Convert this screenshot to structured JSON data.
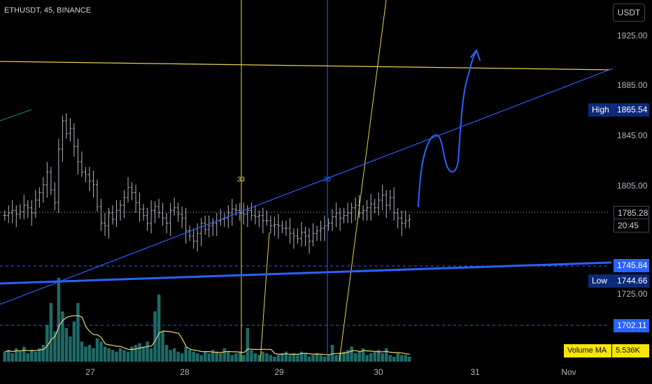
{
  "header": {
    "symbol": "ETHUSDT, 45, BINANCE",
    "currency": "USDT"
  },
  "colors": {
    "background": "#000000",
    "bar": "#b2b5be",
    "volume": "#1e6b68",
    "volume_ma": "#ead27a",
    "trendline_blue": "#2962ff",
    "hand_drawn": "#2962ff",
    "line_yellow": "#e5d24a",
    "high_tag_bg": "#0c2a7a",
    "level_tag_bg": "#2962ff",
    "volume_ma_tag_bg": "#f7e600"
  },
  "price_axis": {
    "ticks": [
      "1925.00",
      "1885.00",
      "1845.00",
      "1805.00",
      "1725.00"
    ]
  },
  "time_axis": {
    "ticks": [
      "27",
      "28",
      "29",
      "30",
      "31",
      "Nov"
    ]
  },
  "tags": {
    "high_label": "High",
    "high_value": "1865.54",
    "last_price": "1785.28",
    "countdown": "20:45",
    "level_upper": "1745.84",
    "low_label": "Low",
    "low_value": "1744.66",
    "level_lower": "1702.11",
    "volume_ma_label": "Volume MA",
    "volume_ma_value": "5.536K"
  },
  "markers": [
    "33",
    "33"
  ],
  "chart_data": {
    "type": "ohlc",
    "symbol": "ETHUSDT",
    "interval": "45",
    "exchange": "BINANCE",
    "y_range": [
      1700,
      1940
    ],
    "x_categories": [
      "27",
      "28",
      "29",
      "30",
      "31",
      "Nov"
    ],
    "horizontal_levels": [
      1745.84,
      1744.66,
      1702.11
    ],
    "last_price": 1785.28,
    "high": 1865.54,
    "low": 1744.66,
    "volume_ma": 5536,
    "close_series": [
      1788,
      1790,
      1792,
      1789,
      1791,
      1796,
      1794,
      1790,
      1800,
      1806,
      1812,
      1822,
      1808,
      1798,
      1840,
      1862,
      1852,
      1856,
      1842,
      1830,
      1822,
      1820,
      1815,
      1812,
      1795,
      1782,
      1780,
      1790,
      1785,
      1792,
      1796,
      1802,
      1810,
      1806,
      1798,
      1793,
      1788,
      1782,
      1792,
      1795,
      1790,
      1786,
      1782,
      1792,
      1794,
      1789,
      1786,
      1776,
      1772,
      1768,
      1774,
      1782,
      1777,
      1780,
      1782,
      1784,
      1785,
      1786,
      1790,
      1793,
      1792,
      1790,
      1789,
      1792,
      1788,
      1787,
      1788,
      1784,
      1784,
      1780,
      1781,
      1780,
      1778,
      1778,
      1774,
      1772,
      1770,
      1775,
      1772,
      1768,
      1774,
      1776,
      1778,
      1780,
      1782,
      1787,
      1790,
      1786,
      1788,
      1790,
      1794,
      1796,
      1790,
      1792,
      1794,
      1797,
      1794,
      1800,
      1804,
      1796,
      1802,
      1790,
      1786,
      1782,
      1784,
      1785
    ],
    "volume_series": [
      6,
      7,
      5,
      8,
      6,
      9,
      5,
      7,
      6,
      8,
      10,
      22,
      35,
      18,
      50,
      30,
      20,
      15,
      24,
      35,
      12,
      9,
      10,
      8,
      14,
      12,
      9,
      8,
      7,
      6,
      8,
      7,
      6,
      9,
      10,
      11,
      9,
      12,
      8,
      30,
      40,
      18,
      10,
      7,
      8,
      6,
      5,
      9,
      7,
      6,
      5,
      4,
      6,
      5,
      7,
      6,
      5,
      8,
      6,
      4,
      5,
      6,
      4,
      20,
      7,
      5,
      4,
      6,
      5,
      4,
      3,
      4,
      5,
      6,
      4,
      5,
      4,
      6,
      5,
      3,
      4,
      5,
      4,
      3,
      4,
      10,
      4,
      5,
      6,
      7,
      9,
      5,
      6,
      8,
      4,
      5,
      6,
      7,
      5,
      8,
      4,
      3,
      5,
      4,
      4,
      3
    ]
  }
}
